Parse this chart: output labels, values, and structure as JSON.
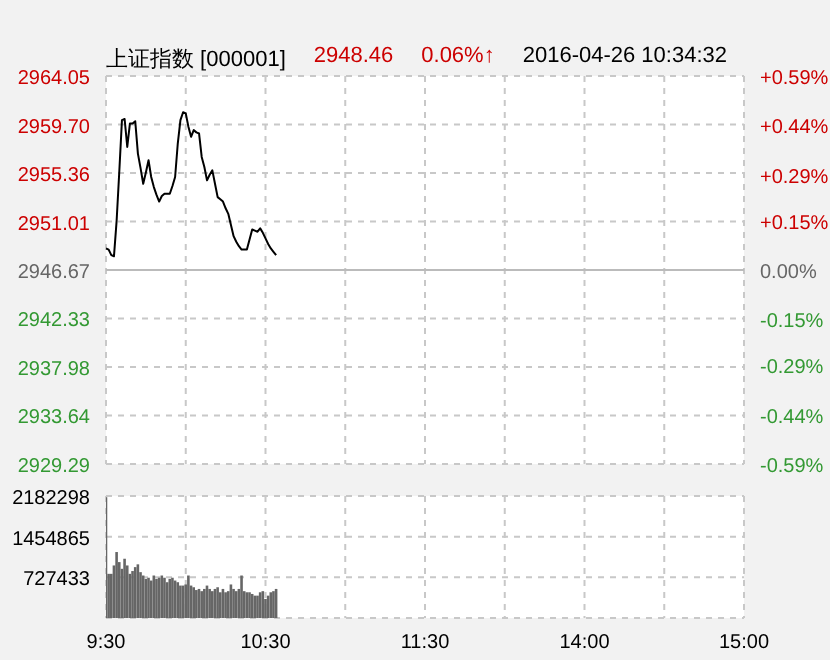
{
  "chart_data": [
    {
      "type": "line",
      "title": "上证指数 [000001]",
      "annotations": [
        "2948.46",
        "0.06%↑",
        "2016-04-26 10:34:32"
      ],
      "categories": [
        null,
        null,
        null,
        null,
        null,
        null,
        null,
        null,
        null,
        null,
        null,
        null,
        null,
        null,
        null,
        null,
        null,
        null,
        null,
        null,
        null,
        null,
        null,
        null,
        null,
        null,
        null,
        null,
        null,
        null,
        null,
        null,
        null,
        null,
        null,
        null,
        null,
        null,
        null,
        null,
        null,
        null,
        null,
        null,
        null,
        null,
        null,
        null,
        null,
        null,
        null,
        null,
        null,
        null,
        null,
        null,
        null,
        null,
        null,
        null,
        null,
        null,
        null,
        null,
        null,
        null,
        null,
        null,
        null,
        null,
        null,
        null,
        null,
        null,
        null,
        null,
        null,
        null,
        null,
        null,
        null,
        null,
        null,
        null,
        null,
        null,
        null,
        null,
        null,
        null,
        null,
        null,
        null,
        null,
        null,
        null,
        null,
        null,
        null,
        null,
        null,
        null,
        null,
        null,
        null,
        null,
        null,
        null,
        null,
        null,
        null,
        null,
        null,
        null,
        null,
        null,
        null,
        null,
        null,
        null,
        null,
        null,
        null,
        null,
        null,
        null,
        null,
        null,
        null,
        null,
        null,
        null,
        null,
        null,
        null,
        null,
        null,
        null,
        null,
        null,
        null,
        null,
        null,
        null,
        null,
        null,
        null,
        null,
        null,
        null,
        null,
        null,
        null,
        null,
        null,
        null,
        null,
        null,
        null,
        null,
        null,
        null,
        null,
        null,
        null,
        null,
        null,
        null,
        null,
        null,
        null,
        null,
        null,
        null,
        null,
        null,
        null,
        null,
        null,
        null,
        null,
        null,
        null,
        null,
        null,
        null,
        null,
        null,
        null,
        null,
        null,
        null,
        null,
        null,
        null,
        null,
        null,
        null,
        null,
        null,
        null,
        null,
        null,
        null,
        null,
        null,
        null,
        null,
        null,
        null,
        null,
        null,
        null,
        null,
        null,
        null,
        null,
        null,
        null,
        null,
        null,
        null,
        null,
        null,
        null,
        null,
        null,
        null,
        null,
        null,
        null,
        null,
        null,
        null,
        null,
        null,
        null,
        null,
        null,
        null,
        null
      ],
      "series": [
        {
          "color": "#000000",
          "values": [
            2948.6,
            2948.5,
            2948.0,
            2947.9,
            2951.1,
            2955.5,
            2960.1,
            2960.2,
            2957.7,
            2959.8,
            2959.8,
            2960.0,
            2957.1,
            2955.8,
            2954.4,
            2955.4,
            2956.5,
            2955.0,
            2954.1,
            2953.4,
            2952.8,
            2953.3,
            2953.5,
            2953.5,
            2953.5,
            2954.2,
            2955.0,
            2958.0,
            2960.1,
            2960.8,
            2960.7,
            2959.5,
            2958.6,
            2959.2,
            2959.0,
            2958.9,
            2956.8,
            2955.9,
            2954.7,
            2955.2,
            2955.6,
            2954.4,
            2953.2,
            2953.0,
            2952.8,
            2952.2,
            2951.7,
            2950.7,
            2949.7,
            2949.2,
            2948.8,
            2948.5,
            2948.5,
            2948.5,
            2949.4,
            2950.3,
            2950.2,
            2950.1,
            2950.4,
            2950.0,
            2949.5,
            2949.0,
            2948.6,
            2948.3,
            2948.0,
            null,
            null,
            null,
            null,
            null,
            null,
            null,
            null,
            null,
            null,
            null,
            null,
            null,
            null,
            null,
            null,
            null,
            null,
            null,
            null,
            null,
            null,
            null,
            null,
            null,
            null,
            null,
            null,
            null,
            null,
            null,
            null,
            null,
            null,
            null,
            null,
            null,
            null,
            null,
            null,
            null,
            null,
            null,
            null,
            null,
            null,
            null,
            null,
            null,
            null,
            null,
            null,
            null,
            null,
            null,
            null,
            null,
            null,
            null,
            null,
            null,
            null,
            null,
            null,
            null,
            null,
            null,
            null,
            null,
            null,
            null,
            null,
            null,
            null,
            null,
            null,
            null,
            null,
            null,
            null,
            null,
            null,
            null,
            null,
            null,
            null,
            null,
            null,
            null,
            null,
            null,
            null,
            null,
            null,
            null,
            null,
            null,
            null,
            null,
            null,
            null,
            null,
            null,
            null,
            null,
            null,
            null,
            null,
            null,
            null,
            null,
            null,
            null,
            null,
            null,
            null,
            null,
            null,
            null,
            null,
            null,
            null,
            null,
            null,
            null,
            null,
            null,
            null,
            null,
            null,
            null,
            null,
            null,
            null,
            null,
            null,
            null,
            null,
            null,
            null,
            null,
            null,
            null,
            null,
            null,
            null,
            null,
            null,
            null,
            null,
            null,
            null,
            null,
            null,
            null,
            null,
            null,
            null,
            null,
            null,
            null,
            null,
            null,
            null,
            null,
            null,
            null,
            null,
            null,
            null,
            null,
            null,
            null,
            null,
            null,
            null
          ]
        }
      ],
      "ylim": [
        2929.29,
        2964.05
      ],
      "yticks": [
        2929.29,
        2933.64,
        2937.98,
        2942.33,
        2946.67,
        2951.01,
        2955.36,
        {
          "value": 2959.7,
          "label": "2959.70"
        },
        2964.05
      ],
      "y2lim": [
        -0.59,
        0.59
      ],
      "y2ticks": [
        {
          "value": -0.59,
          "label": "-0.59%"
        },
        {
          "value": -0.44,
          "label": "-0.44%"
        },
        {
          "value": -0.29,
          "label": "-0.29%"
        },
        {
          "value": -0.15,
          "label": "-0.15%"
        },
        {
          "value": 0,
          "label": "0.00%"
        },
        {
          "value": 0.15,
          "label": "+0.15%"
        },
        {
          "value": 0.29,
          "label": "+0.29%"
        },
        {
          "value": 0.44,
          "label": "+0.44%"
        },
        {
          "value": 0.59,
          "label": "+0.59%"
        }
      ],
      "ref_lines": [
        {
          "axis": "y2",
          "value": 0,
          "color": "#bbbbbb"
        }
      ],
      "grid": true,
      "tick_labels": "y",
      "marker": "none",
      "legend": false
    },
    {
      "type": "bar",
      "categories": [
        "9:30",
        null,
        null,
        null,
        null,
        null,
        null,
        null,
        null,
        null,
        null,
        null,
        null,
        null,
        null,
        null,
        null,
        null,
        null,
        null,
        null,
        null,
        null,
        null,
        null,
        null,
        null,
        null,
        null,
        null,
        null,
        null,
        null,
        null,
        null,
        null,
        null,
        null,
        null,
        null,
        null,
        null,
        null,
        null,
        null,
        null,
        null,
        null,
        null,
        null,
        null,
        null,
        null,
        null,
        null,
        null,
        null,
        null,
        null,
        null,
        "10:30",
        null,
        null,
        null,
        null,
        null,
        null,
        null,
        null,
        null,
        null,
        null,
        null,
        null,
        null,
        null,
        null,
        null,
        null,
        null,
        null,
        null,
        null,
        null,
        null,
        null,
        null,
        null,
        null,
        null,
        null,
        null,
        null,
        null,
        null,
        null,
        null,
        null,
        null,
        null,
        null,
        null,
        null,
        null,
        null,
        null,
        null,
        null,
        null,
        null,
        null,
        null,
        null,
        null,
        null,
        null,
        null,
        null,
        null,
        null,
        "11:30",
        null,
        null,
        null,
        null,
        null,
        null,
        null,
        null,
        null,
        null,
        null,
        null,
        null,
        null,
        null,
        null,
        null,
        null,
        null,
        null,
        null,
        null,
        null,
        null,
        null,
        null,
        null,
        null,
        null,
        null,
        null,
        null,
        null,
        null,
        null,
        null,
        null,
        null,
        null,
        null,
        null,
        null,
        null,
        null,
        null,
        null,
        null,
        null,
        null,
        null,
        null,
        null,
        null,
        null,
        null,
        null,
        null,
        null,
        null,
        "14:00",
        null,
        null,
        null,
        null,
        null,
        null,
        null,
        null,
        null,
        null,
        null,
        null,
        null,
        null,
        null,
        null,
        null,
        null,
        null,
        null,
        null,
        null,
        null,
        null,
        null,
        null,
        null,
        null,
        null,
        null,
        null,
        null,
        null,
        null,
        null,
        null,
        null,
        null,
        null,
        null,
        null,
        null,
        null,
        null,
        null,
        null,
        null,
        null,
        null,
        null,
        null,
        null,
        null,
        null,
        null,
        null,
        null,
        null,
        null,
        "15:00"
      ],
      "series": [
        {
          "color": "#666666",
          "values": [
            2160000,
            790000,
            790000,
            940000,
            1180000,
            1000000,
            880000,
            1060000,
            940000,
            790000,
            840000,
            910000,
            960000,
            820000,
            760000,
            700000,
            720000,
            670000,
            760000,
            700000,
            720000,
            760000,
            720000,
            640000,
            700000,
            720000,
            670000,
            640000,
            580000,
            580000,
            600000,
            760000,
            580000,
            550000,
            500000,
            520000,
            480000,
            520000,
            580000,
            520000,
            480000,
            520000,
            550000,
            460000,
            520000,
            460000,
            480000,
            600000,
            520000,
            480000,
            520000,
            760000,
            480000,
            460000,
            460000,
            430000,
            400000,
            400000,
            460000,
            480000,
            340000,
            400000,
            460000,
            480000,
            520000,
            null,
            null,
            null,
            null,
            null,
            null,
            null,
            null,
            null,
            null,
            null,
            null,
            null,
            null,
            null,
            null,
            null,
            null,
            null,
            null,
            null,
            null,
            null,
            null,
            null,
            null,
            null,
            null,
            null,
            null,
            null,
            null,
            null,
            null,
            null,
            null,
            null,
            null,
            null,
            null,
            null,
            null,
            null,
            null,
            null,
            null,
            null,
            null,
            null,
            null,
            null,
            null,
            null,
            null,
            null,
            null,
            null,
            null,
            null,
            null,
            null,
            null,
            null,
            null,
            null,
            null,
            null,
            null,
            null,
            null,
            null,
            null,
            null,
            null,
            null,
            null,
            null,
            null,
            null,
            null,
            null,
            null,
            null,
            null,
            null,
            null,
            null,
            null,
            null,
            null,
            null,
            null,
            null,
            null,
            null,
            null,
            null,
            null,
            null,
            null,
            null,
            null,
            null,
            null,
            null,
            null,
            null,
            null,
            null,
            null,
            null,
            null,
            null,
            null,
            null,
            null,
            null,
            null,
            null,
            null,
            null,
            null,
            null,
            null,
            null,
            null,
            null,
            null,
            null,
            null,
            null,
            null,
            null,
            null,
            null,
            null,
            null,
            null,
            null,
            null,
            null,
            null,
            null,
            null,
            null,
            null,
            null,
            null,
            null,
            null,
            null,
            null,
            null,
            null,
            null,
            null,
            null,
            null,
            null,
            null,
            null,
            null,
            null,
            null,
            null,
            null,
            null,
            null,
            null,
            null,
            null,
            null,
            null,
            null,
            null,
            null
          ]
        }
      ],
      "ylim": [
        0,
        2182298
      ],
      "yticks": [
        {
          "value": 0,
          "label": null
        },
        727433,
        1454865,
        2182298
      ],
      "grid": true,
      "legend": false
    }
  ]
}
